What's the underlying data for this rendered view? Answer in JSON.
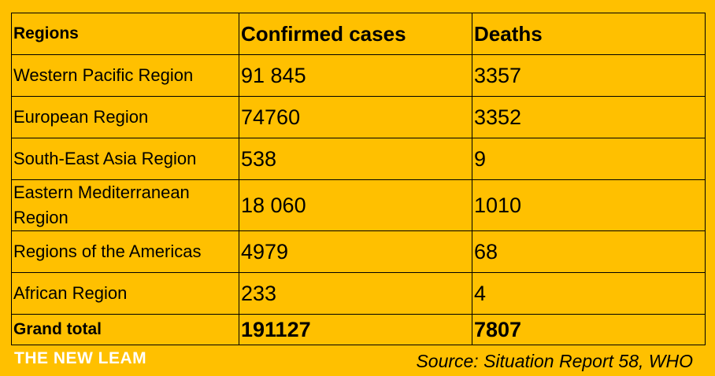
{
  "table": {
    "headers": [
      "Regions",
      "Confirmed cases",
      "Deaths"
    ],
    "rows": [
      {
        "region": "Western Pacific Region",
        "confirmed": "91 845",
        "deaths": "3357"
      },
      {
        "region": "European Region",
        "confirmed": "74760",
        "deaths": "3352"
      },
      {
        "region": "South-East Asia Region",
        "confirmed": "538",
        "deaths": "9"
      },
      {
        "region": "Eastern Mediterranean Region",
        "confirmed": "18 060",
        "deaths": "1010"
      },
      {
        "region": "Regions of the Americas",
        "confirmed": "4979",
        "deaths": "68"
      },
      {
        "region": "African Region",
        "confirmed": "233",
        "deaths": "4"
      }
    ],
    "total": {
      "region": "Grand total",
      "confirmed": "191127",
      "deaths": "7807"
    }
  },
  "footer": {
    "brand": "THE NEW LEAM",
    "source": "Source: Situation Report 58, WHO"
  },
  "colors": {
    "background": "#FFC000",
    "border": "#000000",
    "brand_text": "#FFFFFF"
  }
}
